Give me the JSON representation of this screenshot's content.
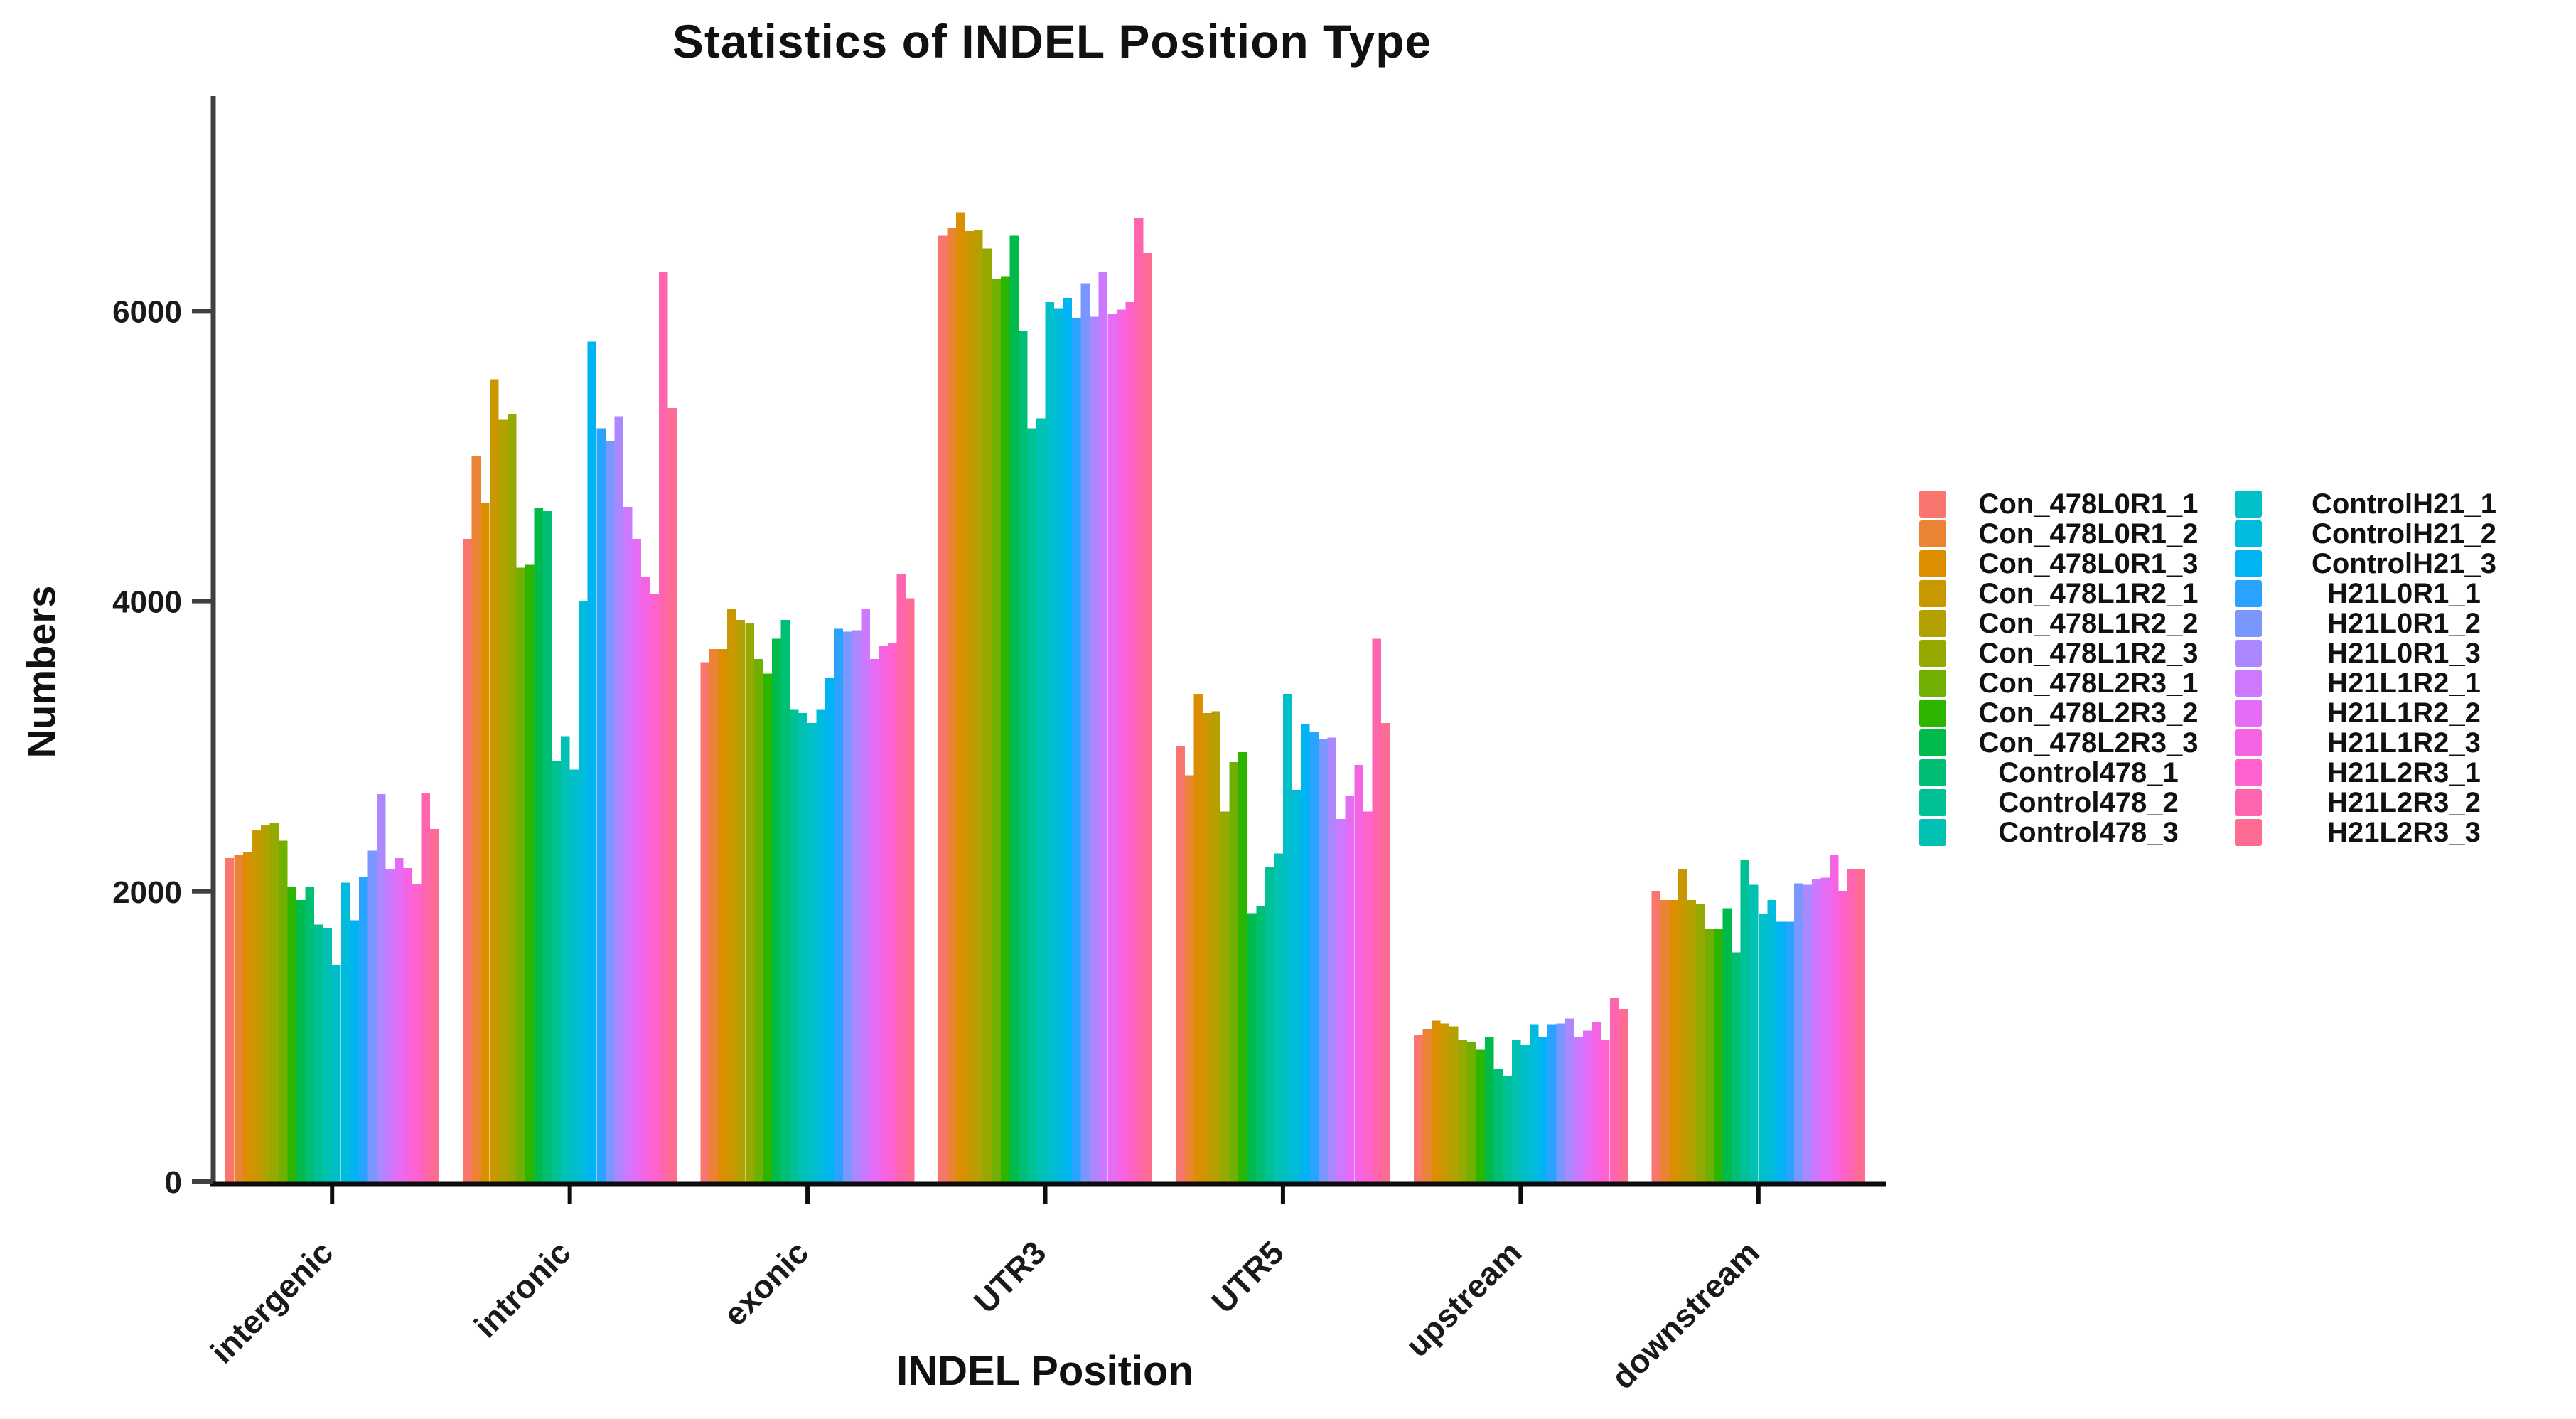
{
  "chart_data": {
    "type": "bar",
    "title": "Statistics of INDEL Position Type",
    "xlabel": "INDEL Position",
    "ylabel": "Numbers",
    "categories": [
      "intergenic",
      "intronic",
      "exonic",
      "UTR3",
      "UTR5",
      "upstream",
      "downstream"
    ],
    "y_ticks": [
      0,
      2000,
      4000,
      6000
    ],
    "ylim": [
      0,
      7480
    ],
    "grid": false,
    "legend_position": "right",
    "legend_columns": 2,
    "axis_color": "#404040",
    "baseline_color": "#0d0d0d",
    "text_color": "#111111",
    "series": [
      {
        "name": "Con_478L0R1_1",
        "color": "#F8766D",
        "values": [
          2230,
          4430,
          3580,
          6520,
          3000,
          1010,
          2000
        ]
      },
      {
        "name": "Con_478L0R1_2",
        "color": "#EB8335",
        "values": [
          2250,
          5000,
          3670,
          6570,
          2800,
          1050,
          1940
        ]
      },
      {
        "name": "Con_478L0R1_3",
        "color": "#DB8E00",
        "values": [
          2270,
          4680,
          3670,
          6680,
          3360,
          1110,
          1940
        ]
      },
      {
        "name": "Con_478L1R2_1",
        "color": "#C99800",
        "values": [
          2420,
          5530,
          3950,
          6550,
          3230,
          1090,
          2150
        ]
      },
      {
        "name": "Con_478L1R2_2",
        "color": "#B2A100",
        "values": [
          2460,
          5250,
          3870,
          6560,
          3240,
          1070,
          1940
        ]
      },
      {
        "name": "Con_478L1R2_3",
        "color": "#95A900",
        "values": [
          2470,
          5290,
          3850,
          6430,
          2550,
          975,
          1910
        ]
      },
      {
        "name": "Con_478L2R3_1",
        "color": "#6FB000",
        "values": [
          2350,
          4230,
          3600,
          6220,
          2890,
          965,
          1740
        ]
      },
      {
        "name": "Con_478L2R3_2",
        "color": "#2CB600",
        "values": [
          2030,
          4250,
          3500,
          6240,
          2960,
          910,
          1740
        ]
      },
      {
        "name": "Con_478L2R3_3",
        "color": "#00BB4B",
        "values": [
          1940,
          4640,
          3740,
          6520,
          1850,
          995,
          1885
        ]
      },
      {
        "name": "Control478_1",
        "color": "#00BF74",
        "values": [
          2030,
          4620,
          3870,
          5860,
          1900,
          780,
          1580
        ]
      },
      {
        "name": "Control478_2",
        "color": "#00C096",
        "values": [
          1770,
          2900,
          3250,
          5190,
          2170,
          730,
          2215
        ]
      },
      {
        "name": "Control478_3",
        "color": "#00C1B2",
        "values": [
          1750,
          3070,
          3230,
          5260,
          2260,
          975,
          2045
        ]
      },
      {
        "name": "ControlH21_1",
        "color": "#00BFC9",
        "values": [
          1490,
          2840,
          3160,
          6060,
          3360,
          940,
          1845
        ]
      },
      {
        "name": "ControlH21_2",
        "color": "#00BBDC",
        "values": [
          2060,
          4000,
          3250,
          6020,
          2700,
          1080,
          1940
        ]
      },
      {
        "name": "ControlH21_3",
        "color": "#00B3F2",
        "values": [
          1800,
          5790,
          3470,
          6090,
          3150,
          995,
          1790
        ]
      },
      {
        "name": "H21L0R1_1",
        "color": "#29A3FF",
        "values": [
          2100,
          5190,
          3810,
          5950,
          3100,
          1080,
          1790
        ]
      },
      {
        "name": "H21L0R1_2",
        "color": "#7997FF",
        "values": [
          2280,
          5100,
          3790,
          6190,
          3050,
          1090,
          2055
        ]
      },
      {
        "name": "H21L0R1_3",
        "color": "#AB88FF",
        "values": [
          2670,
          5275,
          3800,
          5960,
          3060,
          1125,
          2045
        ]
      },
      {
        "name": "H21L1R2_1",
        "color": "#CD79FF",
        "values": [
          2150,
          4650,
          3950,
          6270,
          2500,
          995,
          2085
        ]
      },
      {
        "name": "H21L1R2_2",
        "color": "#E56DF5",
        "values": [
          2230,
          4430,
          3600,
          5980,
          2660,
          1040,
          2095
        ]
      },
      {
        "name": "H21L1R2_3",
        "color": "#F564E5",
        "values": [
          2160,
          4170,
          3690,
          6010,
          2870,
          1100,
          2255
        ]
      },
      {
        "name": "H21L2R3_1",
        "color": "#FF61CF",
        "values": [
          2050,
          4050,
          3710,
          6060,
          2550,
          975,
          2005
        ]
      },
      {
        "name": "H21L2R3_2",
        "color": "#FF65AE",
        "values": [
          2680,
          6270,
          4190,
          6640,
          3740,
          1265,
          2150
        ]
      },
      {
        "name": "H21L2R3_3",
        "color": "#FF6C91",
        "values": [
          2430,
          5330,
          4020,
          6400,
          3160,
          1190,
          2150
        ]
      }
    ]
  }
}
